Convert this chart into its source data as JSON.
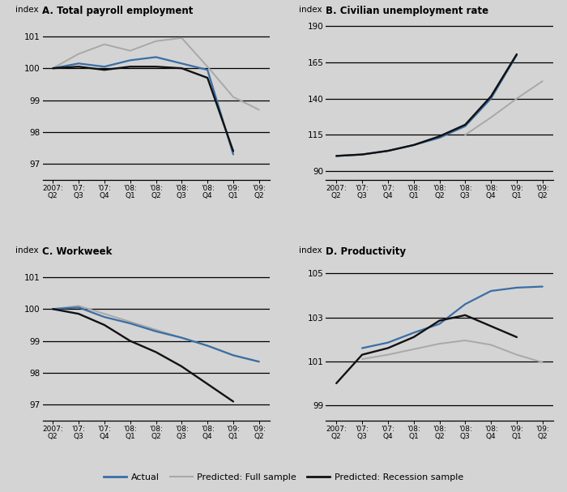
{
  "x_labels": [
    "2007:\nQ2",
    "'07:\nQ3",
    "'07:\nQ4",
    "'08:\nQ1",
    "'08:\nQ2",
    "'08:\nQ3",
    "'08:\nQ4",
    "'09:\nQ1",
    "'09:\nQ2"
  ],
  "background_color": "#d4d4d4",
  "color_actual": "#3a6ea5",
  "color_full": "#a8a8a8",
  "color_recession": "#111111",
  "panels": {
    "A": {
      "title": "A. Total payroll employment",
      "yticks": [
        97,
        98,
        99,
        100,
        101
      ],
      "ylim": [
        96.5,
        101.6
      ],
      "hlines": [
        97,
        98,
        99,
        100,
        101
      ],
      "actual": [
        100.0,
        100.15,
        100.05,
        100.25,
        100.35,
        100.15,
        99.95,
        97.3,
        null
      ],
      "full": [
        100.0,
        100.45,
        100.75,
        100.55,
        100.85,
        100.95,
        100.05,
        99.1,
        98.7
      ],
      "recession": [
        100.0,
        100.05,
        99.95,
        100.05,
        100.05,
        100.0,
        99.7,
        97.4,
        null
      ]
    },
    "B": {
      "title": "B. Civilian unemployment rate",
      "yticks": [
        90,
        115,
        140,
        165,
        190
      ],
      "ylim": [
        84,
        196
      ],
      "hlines": [
        90,
        115,
        140,
        165,
        190
      ],
      "actual": [
        100.5,
        101.5,
        104.0,
        108.0,
        113.0,
        121.0,
        140.0,
        170.0,
        null
      ],
      "full": [
        null,
        null,
        null,
        null,
        null,
        115.0,
        127.0,
        140.0,
        152.0
      ],
      "recession": [
        100.5,
        101.5,
        104.0,
        108.0,
        114.0,
        122.0,
        141.5,
        170.5,
        null
      ]
    },
    "C": {
      "title": "C. Workweek",
      "yticks": [
        97,
        98,
        99,
        100,
        101
      ],
      "ylim": [
        96.5,
        101.6
      ],
      "hlines": [
        97,
        98,
        99,
        100,
        101
      ],
      "actual": [
        100.0,
        100.05,
        99.75,
        99.55,
        99.3,
        99.1,
        98.85,
        98.55,
        98.35
      ],
      "full": [
        100.0,
        100.1,
        99.85,
        99.6,
        99.35,
        99.1,
        98.85,
        98.55,
        98.35
      ],
      "recession": [
        100.0,
        99.85,
        99.5,
        99.0,
        98.65,
        98.2,
        97.65,
        97.1,
        null
      ]
    },
    "D": {
      "title": "D. Productivity",
      "yticks": [
        99,
        101,
        103,
        105
      ],
      "ylim": [
        98.3,
        105.7
      ],
      "hlines": [
        99,
        101,
        103,
        105
      ],
      "actual": [
        null,
        101.6,
        101.85,
        102.3,
        102.7,
        103.6,
        104.2,
        104.35,
        104.4
      ],
      "full": [
        null,
        101.1,
        101.3,
        101.55,
        101.8,
        101.95,
        101.75,
        101.3,
        100.95
      ],
      "recession": [
        100.0,
        101.3,
        101.6,
        102.1,
        102.85,
        103.1,
        102.6,
        102.1,
        null
      ]
    }
  }
}
